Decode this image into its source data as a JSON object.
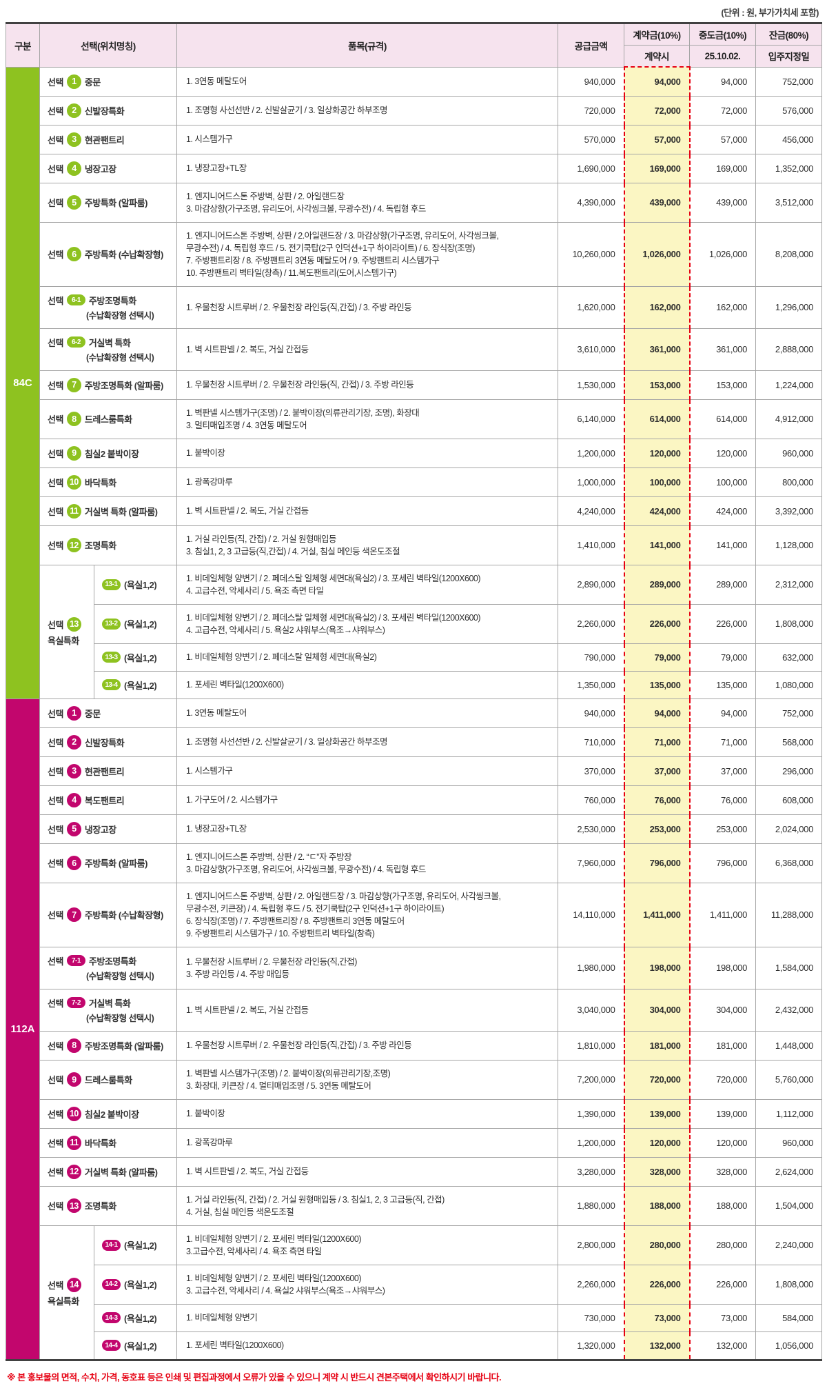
{
  "meta": {
    "unit_note": "(단위 : 원, 부가가치세 포함)",
    "footnote": "※ 본 홍보물의 면적, 수치, 가격, 동호표 등은 인쇄 및 편집과정에서 오류가 있을 수 있으니 계약 시 반드시 견본주택에서 확인하시기 바랍니다.",
    "select_prefix": "선택"
  },
  "colors": {
    "green": "#8ec220",
    "magenta": "#c2066d",
    "highlight": "#fbf6c3",
    "dashed_red": "#e60012",
    "header_bg": "#f6e3ee"
  },
  "header": {
    "col_category": "구분",
    "col_selection": "선택(위치명칭)",
    "col_items": "품목(규격)",
    "col_supply": "공급금액",
    "col_contract": "계약금(10%)",
    "col_contract_sub": "계약시",
    "col_interim": "중도금(10%)",
    "col_interim_sub": "25.10.02.",
    "col_balance": "잔금(80%)",
    "col_balance_sub": "입주지정일"
  },
  "sections": [
    {
      "unit": "84C",
      "color": "#8ec220",
      "rows": [
        {
          "badge": "1",
          "label": "중문",
          "items": "1. 3연동 메탈도어",
          "supply": "940,000",
          "contract": "94,000",
          "interim": "94,000",
          "balance": "752,000"
        },
        {
          "badge": "2",
          "label": "신발장특화",
          "items": "1. 조명형 사선선반 / 2. 신발살균기 / 3. 일상화공간 하부조명",
          "supply": "720,000",
          "contract": "72,000",
          "interim": "72,000",
          "balance": "576,000"
        },
        {
          "badge": "3",
          "label": "현관팬트리",
          "items": "1. 시스템가구",
          "supply": "570,000",
          "contract": "57,000",
          "interim": "57,000",
          "balance": "456,000"
        },
        {
          "badge": "4",
          "label": "냉장고장",
          "items": "1. 냉장고장+TL장",
          "supply": "1,690,000",
          "contract": "169,000",
          "interim": "169,000",
          "balance": "1,352,000"
        },
        {
          "badge": "5",
          "label": "주방특화 (알파룸)",
          "items": "1. 엔지니어드스톤 주방벽, 상판 / 2. 아일랜드장\n3. 마감상향(가구조명, 유리도어, 사각씽크볼, 무광수전) / 4. 독립형 후드",
          "supply": "4,390,000",
          "contract": "439,000",
          "interim": "439,000",
          "balance": "3,512,000"
        },
        {
          "badge": "6",
          "label": "주방특화 (수납확장형)",
          "items": "1. 엔지니어드스톤 주방벽, 상판 / 2.아일랜드장 / 3. 마감상향(가구조명, 유리도어, 사각씽크볼,\n무광수전) / 4. 독립형 후드 / 5. 전기쿡탑(2구 인덕션+1구 하이라이트) / 6. 장식장(조명)\n7. 주방팬트리장 / 8. 주방팬트리 3연동 메탈도어 / 9. 주방팬트리 시스템가구\n10. 주방팬트리 벽타일(창측) / 11.복도팬트리(도어,시스템가구)",
          "supply": "10,260,000",
          "contract": "1,026,000",
          "interim": "1,026,000",
          "balance": "8,208,000"
        },
        {
          "badge": "6-1",
          "label": "주방조명특화",
          "sublabel": "(수납확장형 선택시)",
          "items": "1. 우물천장 시트루버 / 2. 우물천장 라인등(직,간접) / 3. 주방 라인등",
          "supply": "1,620,000",
          "contract": "162,000",
          "interim": "162,000",
          "balance": "1,296,000"
        },
        {
          "badge": "6-2",
          "label": "거실벽 특화",
          "sublabel": "(수납확장형 선택시)",
          "items": "1. 벽 시트판넬 / 2. 복도, 거실 간접등",
          "supply": "3,610,000",
          "contract": "361,000",
          "interim": "361,000",
          "balance": "2,888,000"
        },
        {
          "badge": "7",
          "label": "주방조명특화 (알파룸)",
          "items": "1. 우물천장 시트루버 / 2. 우물천장 라인등(직, 간접) / 3. 주방 라인등",
          "supply": "1,530,000",
          "contract": "153,000",
          "interim": "153,000",
          "balance": "1,224,000"
        },
        {
          "badge": "8",
          "label": "드레스룸특화",
          "items": "1. 벽판넬 시스템가구(조명) / 2. 붙박이장(의류관리기장, 조명), 화장대\n3. 멀티매입조명 / 4. 3연동 메탈도어",
          "supply": "6,140,000",
          "contract": "614,000",
          "interim": "614,000",
          "balance": "4,912,000"
        },
        {
          "badge": "9",
          "label": "침실2 붙박이장",
          "items": "1. 붙박이장",
          "supply": "1,200,000",
          "contract": "120,000",
          "interim": "120,000",
          "balance": "960,000"
        },
        {
          "badge": "10",
          "label": "바닥특화",
          "items": "1. 광폭강마루",
          "supply": "1,000,000",
          "contract": "100,000",
          "interim": "100,000",
          "balance": "800,000"
        },
        {
          "badge": "11",
          "label": "거실벽 특화 (알파룸)",
          "items": "1. 벽 시트판넬 / 2. 복도, 거실 간접등",
          "supply": "4,240,000",
          "contract": "424,000",
          "interim": "424,000",
          "balance": "3,392,000"
        },
        {
          "badge": "12",
          "label": "조명특화",
          "items": "1. 거실 라인등(직, 간접) / 2. 거실 원형매입등\n3. 침실1, 2, 3 고급등(직,간접) / 4. 거실, 침실 메인등 색온도조절",
          "supply": "1,410,000",
          "contract": "141,000",
          "interim": "141,000",
          "balance": "1,128,000"
        },
        {
          "group": {
            "badge": "13",
            "label": "욕실특화",
            "span": 4
          },
          "sub": {
            "badge": "13-1",
            "label": "(욕실1,2)"
          },
          "items": "1. 비데일체형 양변기 / 2. 페데스탈 일체형 세면대(욕실2) / 3. 포세린 벽타일(1200X600)\n4. 고급수전, 악세사리 / 5. 욕조 측면 타일",
          "supply": "2,890,000",
          "contract": "289,000",
          "interim": "289,000",
          "balance": "2,312,000"
        },
        {
          "sub": {
            "badge": "13-2",
            "label": "(욕실1,2)"
          },
          "items": "1. 비데일체형 양변기 / 2. 페데스탈 일체형 세면대(욕실2) / 3. 포세린 벽타일(1200X600)\n4. 고급수전, 악세사리 / 5. 욕실2 샤워부스(욕조→샤워부스)",
          "supply": "2,260,000",
          "contract": "226,000",
          "interim": "226,000",
          "balance": "1,808,000"
        },
        {
          "sub": {
            "badge": "13-3",
            "label": "(욕실1,2)"
          },
          "items": "1. 비데일체형 양변기 / 2. 페데스탈 일체형 세면대(욕실2)",
          "supply": "790,000",
          "contract": "79,000",
          "interim": "79,000",
          "balance": "632,000"
        },
        {
          "sub": {
            "badge": "13-4",
            "label": "(욕실1,2)"
          },
          "items": "1. 포세린 벽타일(1200X600)",
          "supply": "1,350,000",
          "contract": "135,000",
          "interim": "135,000",
          "balance": "1,080,000"
        }
      ]
    },
    {
      "unit": "112A",
      "color": "#c2066d",
      "rows": [
        {
          "badge": "1",
          "label": "중문",
          "items": "1. 3연동 메탈도어",
          "supply": "940,000",
          "contract": "94,000",
          "interim": "94,000",
          "balance": "752,000"
        },
        {
          "badge": "2",
          "label": "신발장특화",
          "items": "1. 조명형 사선선반 / 2. 신발살균기 / 3. 일상화공간 하부조명",
          "supply": "710,000",
          "contract": "71,000",
          "interim": "71,000",
          "balance": "568,000"
        },
        {
          "badge": "3",
          "label": "현관팬트리",
          "items": "1. 시스템가구",
          "supply": "370,000",
          "contract": "37,000",
          "interim": "37,000",
          "balance": "296,000"
        },
        {
          "badge": "4",
          "label": "복도팬트리",
          "items": "1. 가구도어 / 2. 시스템가구",
          "supply": "760,000",
          "contract": "76,000",
          "interim": "76,000",
          "balance": "608,000"
        },
        {
          "badge": "5",
          "label": "냉장고장",
          "items": "1. 냉장고장+TL장",
          "supply": "2,530,000",
          "contract": "253,000",
          "interim": "253,000",
          "balance": "2,024,000"
        },
        {
          "badge": "6",
          "label": "주방특화 (알파룸)",
          "items": "1. 엔지니어드스톤 주방벽, 상판 / 2. “ㄷ”자 주방장\n3. 마감상향(가구조명, 유리도어, 사각씽크볼, 무광수전) / 4. 독립형 후드",
          "supply": "7,960,000",
          "contract": "796,000",
          "interim": "796,000",
          "balance": "6,368,000"
        },
        {
          "badge": "7",
          "label": "주방특화 (수납확장형)",
          "items": "1. 엔지니어드스톤 주방벽, 상판 / 2. 아일랜드장 / 3. 마감상향(가구조명, 유리도어, 사각씽크볼,\n무광수전, 키큰장) / 4. 독립형 후드 / 5. 전기쿡탑(2구 인덕션+1구 하이라이트)\n6. 장식장(조명) / 7. 주방팬트리장 / 8. 주방팬트리 3연동 메탈도어\n9. 주방팬트리 시스템가구 / 10. 주방팬트리 벽타일(창측)",
          "supply": "14,110,000",
          "contract": "1,411,000",
          "interim": "1,411,000",
          "balance": "11,288,000"
        },
        {
          "badge": "7-1",
          "label": "주방조명특화",
          "sublabel": "(수납확장형 선택시)",
          "items": "1. 우물천장 시트루버 / 2. 우물천장 라인등(직,간접)\n3. 주방 라인등 / 4. 주방 매입등",
          "supply": "1,980,000",
          "contract": "198,000",
          "interim": "198,000",
          "balance": "1,584,000"
        },
        {
          "badge": "7-2",
          "label": "거실벽 특화",
          "sublabel": "(수납확장형 선택시)",
          "items": "1. 벽 시트판넬 / 2. 복도, 거실 간접등",
          "supply": "3,040,000",
          "contract": "304,000",
          "interim": "304,000",
          "balance": "2,432,000"
        },
        {
          "badge": "8",
          "label": "주방조명특화 (알파룸)",
          "items": "1. 우물천장 시트루버 / 2. 우물천장 라인등(직,간접) / 3. 주방 라인등",
          "supply": "1,810,000",
          "contract": "181,000",
          "interim": "181,000",
          "balance": "1,448,000"
        },
        {
          "badge": "9",
          "label": "드레스룸특화",
          "items": "1. 벽판넬 시스템가구(조명) / 2. 붙박이장(의류관리기장,조명)\n3. 화장대, 키큰장 / 4. 멀티매입조명 / 5. 3연동 메탈도어",
          "supply": "7,200,000",
          "contract": "720,000",
          "interim": "720,000",
          "balance": "5,760,000"
        },
        {
          "badge": "10",
          "label": "침실2 붙박이장",
          "items": "1. 붙박이장",
          "supply": "1,390,000",
          "contract": "139,000",
          "interim": "139,000",
          "balance": "1,112,000"
        },
        {
          "badge": "11",
          "label": "바닥특화",
          "items": "1. 광폭강마루",
          "supply": "1,200,000",
          "contract": "120,000",
          "interim": "120,000",
          "balance": "960,000"
        },
        {
          "badge": "12",
          "label": "거실벽 특화 (알파룸)",
          "items": "1. 벽 시트판넬 / 2. 복도, 거실 간접등",
          "supply": "3,280,000",
          "contract": "328,000",
          "interim": "328,000",
          "balance": "2,624,000"
        },
        {
          "badge": "13",
          "label": "조명특화",
          "items": "1. 거실 라인등(직, 간접) / 2. 거실 원형매입등 / 3. 침실1, 2, 3 고급등(직, 간접)\n4. 거실, 침실 메인등 색온도조절",
          "supply": "1,880,000",
          "contract": "188,000",
          "interim": "188,000",
          "balance": "1,504,000"
        },
        {
          "group": {
            "badge": "14",
            "label": "욕실특화",
            "span": 4
          },
          "sub": {
            "badge": "14-1",
            "label": "(욕실1,2)"
          },
          "items": "1. 비데일체형 양변기 / 2. 포세린 벽타일(1200X600)\n3.고급수전, 악세사리 / 4. 욕조 측면 타일",
          "supply": "2,800,000",
          "contract": "280,000",
          "interim": "280,000",
          "balance": "2,240,000"
        },
        {
          "sub": {
            "badge": "14-2",
            "label": "(욕실1,2)"
          },
          "items": "1. 비데일체형 양변기 / 2. 포세린 벽타일(1200X600)\n3. 고급수전, 악세사리 / 4. 욕실2 샤워부스(욕조→샤워부스)",
          "supply": "2,260,000",
          "contract": "226,000",
          "interim": "226,000",
          "balance": "1,808,000"
        },
        {
          "sub": {
            "badge": "14-3",
            "label": "(욕실1,2)"
          },
          "items": "1. 비데일체형 양변기",
          "supply": "730,000",
          "contract": "73,000",
          "interim": "73,000",
          "balance": "584,000"
        },
        {
          "sub": {
            "badge": "14-4",
            "label": "(욕실1,2)"
          },
          "items": "1. 포세린 벽타일(1200X600)",
          "supply": "1,320,000",
          "contract": "132,000",
          "interim": "132,000",
          "balance": "1,056,000"
        }
      ]
    }
  ]
}
